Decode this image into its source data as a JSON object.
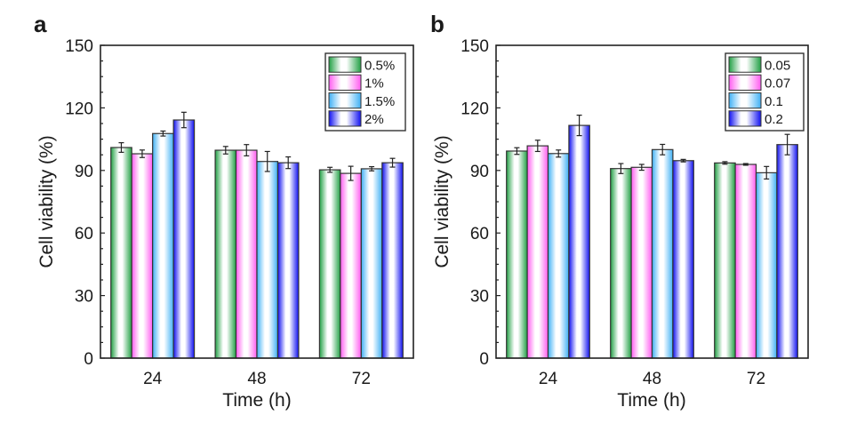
{
  "chart_data": [
    {
      "panel": "a",
      "type": "bar",
      "title": "",
      "xlabel": "Time (h)",
      "ylabel": "Cell viability (%)",
      "ylim": [
        0,
        150
      ],
      "yticks": [
        0,
        30,
        60,
        90,
        120,
        150
      ],
      "categories": [
        "24",
        "48",
        "72"
      ],
      "grid": false,
      "legend_position": "top-right",
      "series": [
        {
          "name": "0.5%",
          "color": "#22a045",
          "values": [
            101.0,
            99.7,
            90.3
          ],
          "errors": [
            2.3,
            1.8,
            1.2
          ]
        },
        {
          "name": "1%",
          "color": "#ff5cf0",
          "values": [
            98.0,
            99.7,
            88.6
          ],
          "errors": [
            1.8,
            2.7,
            3.4
          ]
        },
        {
          "name": "1.5%",
          "color": "#3fb0f5",
          "values": [
            107.7,
            94.3,
            90.8
          ],
          "errors": [
            1.2,
            4.8,
            1.0
          ]
        },
        {
          "name": "2%",
          "color": "#1010f0",
          "values": [
            114.2,
            93.7,
            93.7
          ],
          "errors": [
            3.7,
            2.8,
            2.1
          ]
        }
      ]
    },
    {
      "panel": "b",
      "type": "bar",
      "title": "",
      "xlabel": "Time (h)",
      "ylabel": "Cell viability (%)",
      "ylim": [
        0,
        150
      ],
      "yticks": [
        0,
        30,
        60,
        90,
        120,
        150
      ],
      "categories": [
        "24",
        "48",
        "72"
      ],
      "grid": false,
      "legend_position": "top-right",
      "series": [
        {
          "name": "0.05",
          "color": "#22a045",
          "values": [
            99.3,
            90.9,
            93.6
          ],
          "errors": [
            1.6,
            2.4,
            0.6
          ]
        },
        {
          "name": "0.07",
          "color": "#ff5cf0",
          "values": [
            101.8,
            91.5,
            92.9
          ],
          "errors": [
            2.7,
            1.4,
            0.4
          ]
        },
        {
          "name": "0.1",
          "color": "#3fb0f5",
          "values": [
            98.1,
            100.0,
            88.9
          ],
          "errors": [
            1.7,
            2.5,
            3.0
          ]
        },
        {
          "name": "0.2",
          "color": "#1010f0",
          "values": [
            111.6,
            94.7,
            102.4
          ],
          "errors": [
            4.9,
            0.6,
            4.9
          ]
        }
      ]
    }
  ]
}
